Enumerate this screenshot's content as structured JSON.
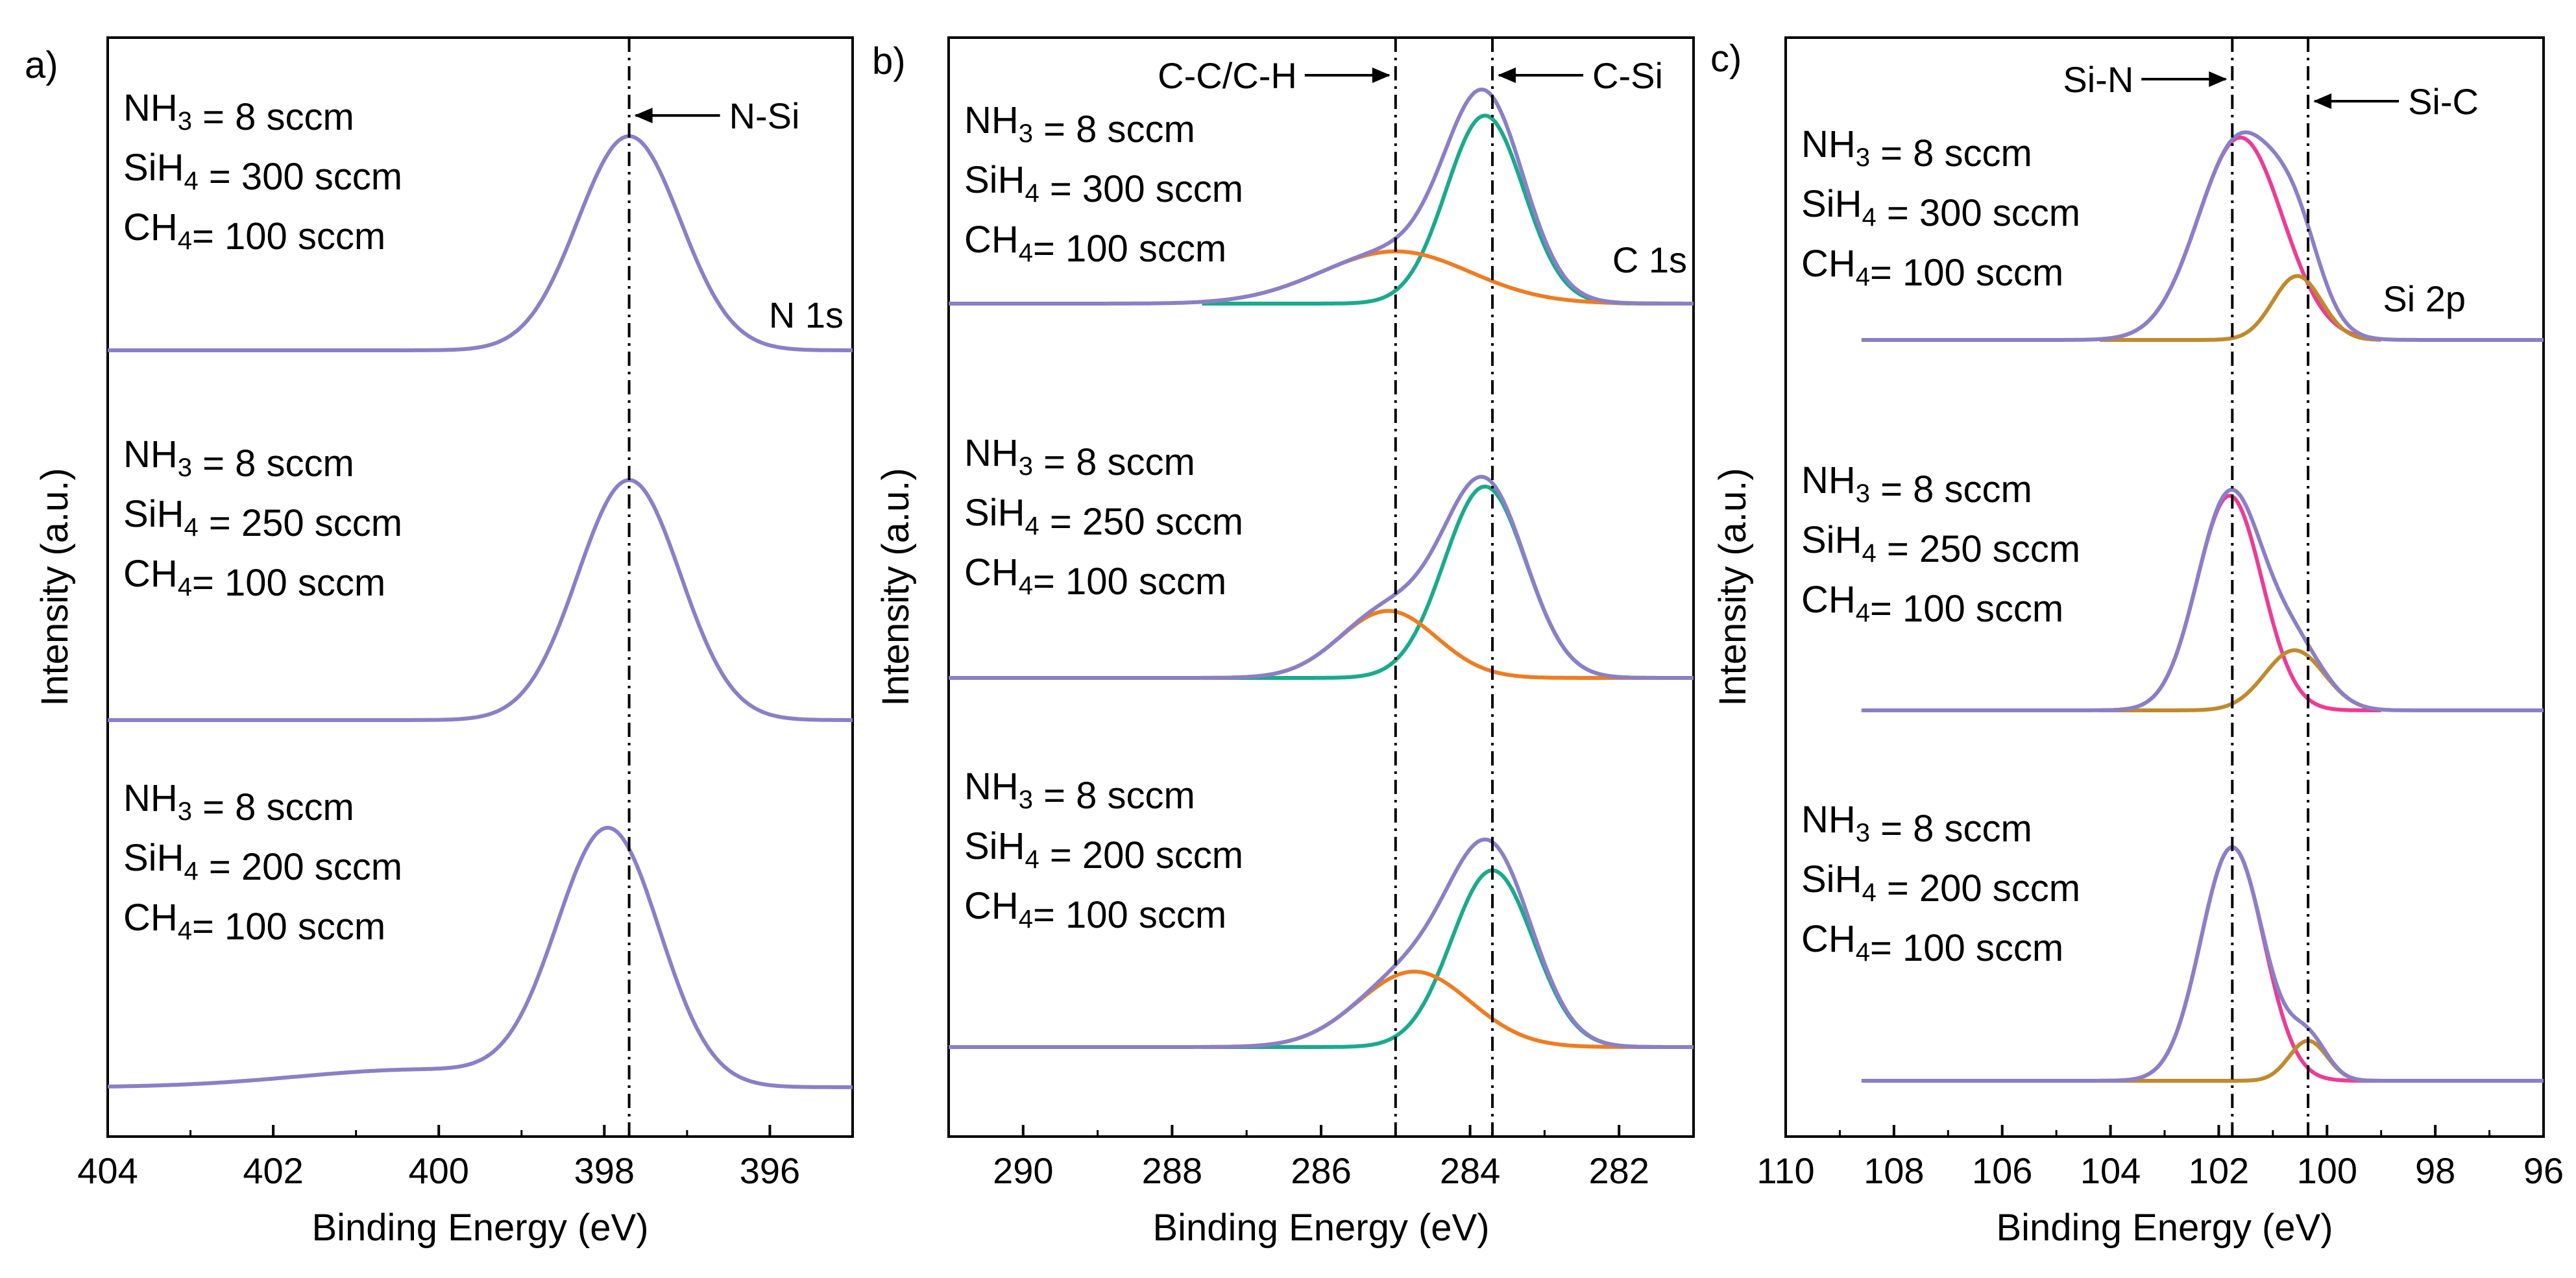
{
  "figure": {
    "panel_labels": [
      "a)",
      "b)",
      "c)"
    ]
  },
  "chart_data": [
    {
      "type": "line",
      "panel_label": "a)",
      "title": "",
      "xlabel": "Binding Energy (eV)",
      "ylabel": "Intensity (a.u.)",
      "xlim": [
        404,
        395
      ],
      "x_reversed": true,
      "xticks": [
        "404",
        "402",
        "400",
        "398",
        "396"
      ],
      "grid": false,
      "core_level_label": "N 1s",
      "reference_lines": [
        {
          "x": 397.7,
          "label": "N-Si",
          "arrow": "left"
        }
      ],
      "stacks": [
        {
          "conditions": {
            "nh3": "NH₃ = 8 sccm",
            "sih4": "SiH₄ = 300 sccm",
            "ch4": "CH₄= 100 sccm"
          },
          "series": [
            {
              "name": "Envelope",
              "color": "#8b7fc7",
              "peaks": [
                {
                  "center": 397.7,
                  "sigma": 0.62,
                  "amp": 1.0
                }
              ]
            }
          ]
        },
        {
          "conditions": {
            "nh3": "NH₃ = 8 sccm",
            "sih4": "SiH₄ = 250 sccm",
            "ch4": "CH₄= 100 sccm"
          },
          "series": [
            {
              "name": "Envelope",
              "color": "#8b7fc7",
              "peaks": [
                {
                  "center": 397.7,
                  "sigma": 0.62,
                  "amp": 1.0
                }
              ]
            }
          ]
        },
        {
          "conditions": {
            "nh3": "NH₃ = 8 sccm",
            "sih4": "SiH₄ = 200 sccm",
            "ch4": "CH₄= 100 sccm"
          },
          "series": [
            {
              "name": "Envelope",
              "color": "#8b7fc7",
              "peaks": [
                {
                  "center": 397.95,
                  "sigma": 0.62,
                  "amp": 1.0
                },
                {
                  "center": 400.2,
                  "sigma": 1.5,
                  "amp": 0.07
                }
              ]
            }
          ]
        }
      ]
    },
    {
      "type": "line",
      "panel_label": "b)",
      "title": "",
      "xlabel": "Binding Energy (eV)",
      "ylabel": "Intensity (a.u.)",
      "xlim": [
        291,
        281
      ],
      "x_reversed": true,
      "xticks": [
        "290",
        "288",
        "286",
        "284",
        "282"
      ],
      "grid": false,
      "core_level_label": "C 1s",
      "reference_lines": [
        {
          "x": 285.0,
          "label": "C-C/C-H",
          "arrow": "right"
        },
        {
          "x": 283.7,
          "label": "C-Si",
          "arrow": "left"
        }
      ],
      "stacks": [
        {
          "conditions": {
            "nh3": "NH₃ = 8 sccm",
            "sih4": "SiH₄ = 300 sccm",
            "ch4": "CH₄= 100 sccm"
          },
          "series": [
            {
              "name": "Envelope",
              "color": "#8b7fc7",
              "sum": true
            },
            {
              "name": "C-Si",
              "color": "#1aaa8c",
              "peaks": [
                {
                  "center": 283.8,
                  "sigma": 0.52,
                  "amp": 0.9
                }
              ]
            },
            {
              "name": "C-C/C-H",
              "color": "#ee7d22",
              "peaks": [
                {
                  "center": 285.0,
                  "sigma": 1.0,
                  "amp": 0.25
                }
              ]
            }
          ]
        },
        {
          "conditions": {
            "nh3": "NH₃ = 8 sccm",
            "sih4": "SiH₄ = 250 sccm",
            "ch4": "CH₄= 100 sccm"
          },
          "series": [
            {
              "name": "Envelope",
              "color": "#8b7fc7",
              "sum": true
            },
            {
              "name": "C-Si",
              "color": "#1aaa8c",
              "peaks": [
                {
                  "center": 283.8,
                  "sigma": 0.55,
                  "amp": 0.8
                }
              ]
            },
            {
              "name": "C-C/C-H",
              "color": "#ee7d22",
              "peaks": [
                {
                  "center": 285.1,
                  "sigma": 0.65,
                  "amp": 0.28
                }
              ]
            }
          ]
        },
        {
          "conditions": {
            "nh3": "NH₃ = 8 sccm",
            "sih4": "SiH₄ = 200 sccm",
            "ch4": "CH₄= 100 sccm"
          },
          "series": [
            {
              "name": "Envelope",
              "color": "#8b7fc7",
              "sum": true
            },
            {
              "name": "C-Si",
              "color": "#1aaa8c",
              "peaks": [
                {
                  "center": 283.7,
                  "sigma": 0.55,
                  "amp": 0.82
                }
              ]
            },
            {
              "name": "C-C/C-H",
              "color": "#ee7d22",
              "peaks": [
                {
                  "center": 284.75,
                  "sigma": 0.75,
                  "amp": 0.35
                }
              ]
            }
          ]
        }
      ]
    },
    {
      "type": "line",
      "panel_label": "c)",
      "title": "",
      "xlabel": "Binding Energy (eV)",
      "ylabel": "Intensity (a.u.)",
      "xlim": [
        110,
        96
      ],
      "x_reversed": true,
      "xticks": [
        "110",
        "108",
        "106",
        "104",
        "102",
        "100",
        "98",
        "96"
      ],
      "grid": false,
      "core_level_label": "Si 2p",
      "reference_lines": [
        {
          "x": 101.75,
          "label": "Si-N",
          "arrow": "right"
        },
        {
          "x": 100.35,
          "label": "Si-C",
          "arrow": "left"
        }
      ],
      "stacks": [
        {
          "conditions": {
            "nh3": "NH₃ = 8 sccm",
            "sih4": "SiH₄ = 300 sccm",
            "ch4": "CH₄= 100 sccm"
          },
          "series": [
            {
              "name": "Envelope",
              "color": "#8b7fc7",
              "sum": true
            },
            {
              "name": "Si-N",
              "color": "#ec3c96",
              "peaks": [
                {
                  "center": 101.6,
                  "sigma": 0.78,
                  "amp": 0.95
                }
              ]
            },
            {
              "name": "Si-C",
              "color": "#c08a2c",
              "peaks": [
                {
                  "center": 100.55,
                  "sigma": 0.45,
                  "amp": 0.3
                }
              ]
            }
          ]
        },
        {
          "conditions": {
            "nh3": "NH₃ = 8 sccm",
            "sih4": "SiH₄ = 250 sccm",
            "ch4": "CH₄= 100 sccm"
          },
          "series": [
            {
              "name": "Envelope",
              "color": "#8b7fc7",
              "sum": true
            },
            {
              "name": "Si-N",
              "color": "#ec3c96",
              "peaks": [
                {
                  "center": 101.8,
                  "sigma": 0.6,
                  "amp": 1.0
                }
              ]
            },
            {
              "name": "Si-C",
              "color": "#c08a2c",
              "peaks": [
                {
                  "center": 100.6,
                  "sigma": 0.55,
                  "amp": 0.28
                }
              ]
            }
          ]
        },
        {
          "conditions": {
            "nh3": "NH₃ = 8 sccm",
            "sih4": "SiH₄ = 200 sccm",
            "ch4": "CH₄= 100 sccm"
          },
          "series": [
            {
              "name": "Envelope",
              "color": "#8b7fc7",
              "sum": true
            },
            {
              "name": "Si-N",
              "color": "#ec3c96",
              "peaks": [
                {
                  "center": 101.75,
                  "sigma": 0.58,
                  "amp": 1.05
                }
              ]
            },
            {
              "name": "Si-C",
              "color": "#c08a2c",
              "peaks": [
                {
                  "center": 100.35,
                  "sigma": 0.35,
                  "amp": 0.18
                }
              ]
            }
          ]
        }
      ]
    }
  ]
}
